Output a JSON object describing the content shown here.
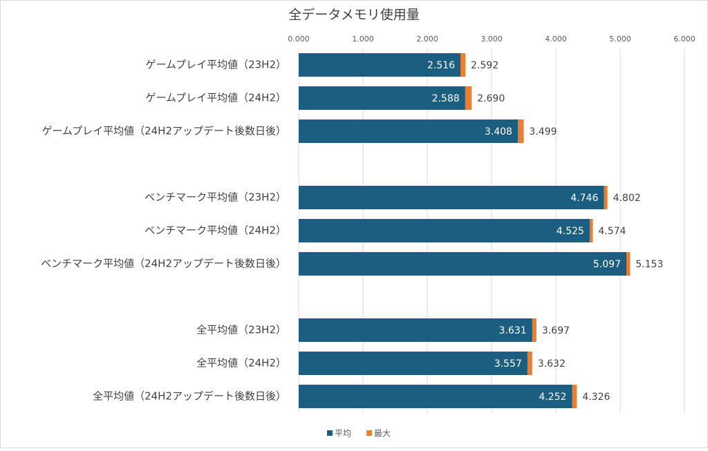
{
  "chart_data": {
    "type": "bar",
    "orientation": "horizontal",
    "title": "全データメモリ使用量",
    "categories": [
      "ゲームプレイ平均値（23H2）",
      "ゲームプレイ平均値（24H2）",
      "ゲームプレイ平均値（24H2アップデート後数日後）",
      null,
      "ベンチマーク平均値（23H2）",
      "ベンチマーク平均値（24H2）",
      "ベンチマーク平均値（24H2アップデート後数日後）",
      null,
      "全平均値（23H2）",
      "全平均値（24H2）",
      "全平均値（24H2アップデート後数日後）"
    ],
    "series": [
      {
        "name": "平均",
        "color": "#1b5e80",
        "values": [
          2.516,
          2.588,
          3.408,
          null,
          4.746,
          4.525,
          5.097,
          null,
          3.631,
          3.557,
          4.252
        ],
        "value_labels": [
          "2.516",
          "2.588",
          "3.408",
          null,
          "4.746",
          "4.525",
          "5.097",
          null,
          "3.631",
          "3.557",
          "4.252"
        ]
      },
      {
        "name": "最大",
        "color": "#ed7d31",
        "values": [
          2.592,
          2.69,
          3.499,
          null,
          4.802,
          4.574,
          5.153,
          null,
          3.697,
          3.632,
          4.326
        ],
        "value_labels": [
          "2.592",
          "2.690",
          "3.499",
          null,
          "4.802",
          "4.574",
          "5.153",
          null,
          "3.697",
          "3.632",
          "4.326"
        ]
      }
    ],
    "xlim": [
      0,
      6
    ],
    "xticks": [
      {
        "value": 0,
        "label": "0.000"
      },
      {
        "value": 1,
        "label": "1.000"
      },
      {
        "value": 2,
        "label": "2.000"
      },
      {
        "value": 3,
        "label": "3.000"
      },
      {
        "value": 4,
        "label": "4.000"
      },
      {
        "value": 5,
        "label": "5.000"
      },
      {
        "value": 6,
        "label": "6.000"
      }
    ],
    "grid": true,
    "legend": "bottom"
  }
}
